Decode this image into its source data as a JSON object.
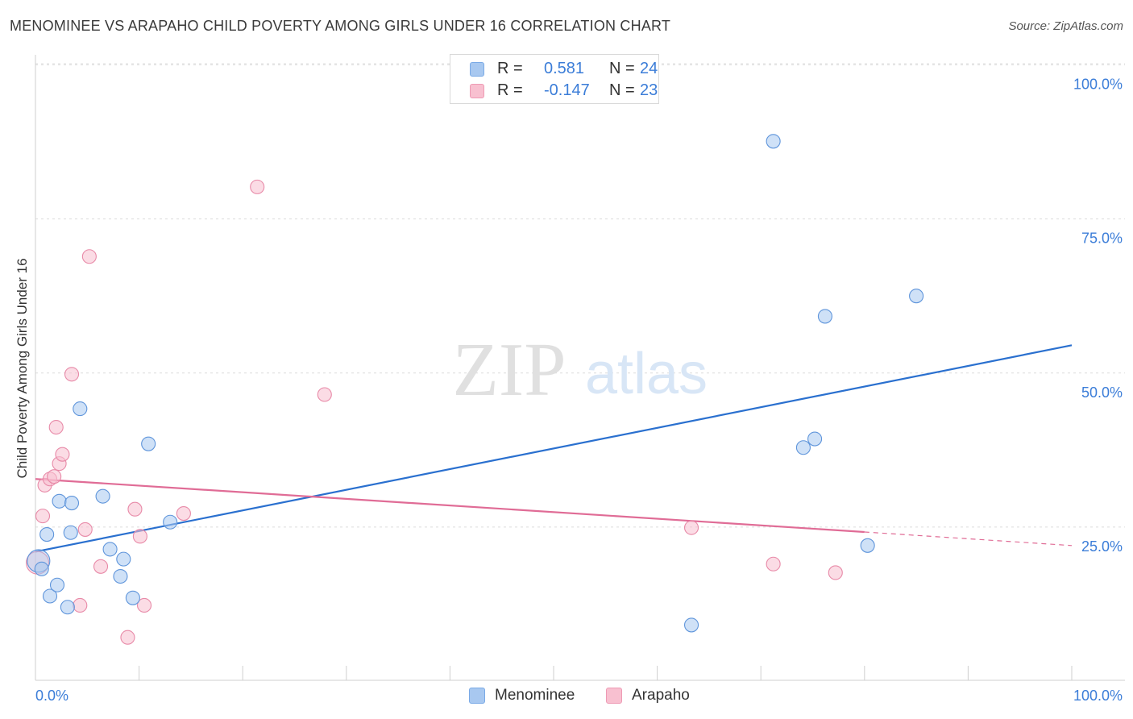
{
  "header": {
    "title": "MENOMINEE VS ARAPAHO CHILD POVERTY AMONG GIRLS UNDER 16 CORRELATION CHART",
    "source": "Source: ZipAtlas.com"
  },
  "watermark": {
    "zip": "ZIP",
    "atlas": "atlas"
  },
  "legend": {
    "rows": [
      {
        "r_label": "R =",
        "r_value": "0.581",
        "n_label": "N =",
        "n_value": "24",
        "color": "#a8c8f0",
        "border": "#7aaae6"
      },
      {
        "r_label": "R =",
        "r_value": "-0.147",
        "n_label": "N =",
        "n_value": "23",
        "color": "#f8c0d0",
        "border": "#ee9ab4"
      }
    ],
    "bottom": [
      {
        "label": "Menominee",
        "color": "#a8c8f0",
        "border": "#7aaae6"
      },
      {
        "label": "Arapaho",
        "color": "#f8c0d0",
        "border": "#ee9ab4"
      }
    ]
  },
  "colors": {
    "menominee_fill": "#a8c8f0",
    "menominee_stroke": "#5f95db",
    "menominee_line": "#2a70cf",
    "arapaho_fill": "#f8c0d0",
    "arapaho_stroke": "#e88aa8",
    "arapaho_line": "#e06c96",
    "axis_tick_text": "#3b7dd8",
    "grid": "#dcdcdc"
  },
  "chart_data": {
    "type": "scatter",
    "title": "MENOMINEE VS ARAPAHO CHILD POVERTY AMONG GIRLS UNDER 16 CORRELATION CHART",
    "xlabel": "",
    "ylabel": "Child Poverty Among Girls Under 16",
    "xlim": [
      0,
      100
    ],
    "ylim": [
      0,
      100
    ],
    "x_tick_labels": [
      "0.0%",
      "100.0%"
    ],
    "y_ticks": [
      {
        "value": 100,
        "label": "100.0%"
      },
      {
        "value": 75,
        "label": "75.0%"
      },
      {
        "value": 50,
        "label": "50.0%"
      },
      {
        "value": 25,
        "label": "25.0%"
      }
    ],
    "grid": true,
    "legend_position": "top-center",
    "series": [
      {
        "name": "Menominee",
        "r": 0.581,
        "n": 24,
        "points": [
          [
            0.3,
            19.5
          ],
          [
            0.6,
            18.2
          ],
          [
            1.1,
            23.8
          ],
          [
            1.4,
            13.8
          ],
          [
            2.1,
            15.6
          ],
          [
            2.3,
            29.2
          ],
          [
            3.1,
            12.0
          ],
          [
            3.4,
            24.1
          ],
          [
            3.5,
            28.9
          ],
          [
            4.3,
            44.2
          ],
          [
            6.5,
            30.0
          ],
          [
            7.2,
            21.4
          ],
          [
            8.2,
            17.0
          ],
          [
            8.5,
            19.8
          ],
          [
            9.4,
            13.5
          ],
          [
            10.9,
            38.5
          ],
          [
            13.0,
            25.8
          ],
          [
            63.3,
            9.1
          ],
          [
            71.2,
            87.6
          ],
          [
            74.1,
            37.9
          ],
          [
            75.2,
            39.3
          ],
          [
            76.2,
            59.2
          ],
          [
            80.3,
            22.0
          ],
          [
            85.0,
            62.5
          ]
        ],
        "trend": {
          "x": [
            0,
            100
          ],
          "y": [
            21.0,
            54.5
          ]
        }
      },
      {
        "name": "Arapaho",
        "r": -0.147,
        "n": 23,
        "points": [
          [
            0.2,
            19.2
          ],
          [
            0.7,
            26.8
          ],
          [
            0.9,
            31.8
          ],
          [
            1.4,
            32.8
          ],
          [
            1.8,
            33.2
          ],
          [
            2.0,
            41.2
          ],
          [
            2.3,
            35.3
          ],
          [
            2.6,
            36.8
          ],
          [
            3.5,
            49.8
          ],
          [
            4.3,
            12.3
          ],
          [
            4.8,
            24.6
          ],
          [
            5.2,
            68.9
          ],
          [
            6.3,
            18.6
          ],
          [
            8.9,
            7.1
          ],
          [
            9.6,
            27.9
          ],
          [
            10.1,
            23.5
          ],
          [
            10.5,
            12.3
          ],
          [
            14.3,
            27.2
          ],
          [
            21.4,
            80.2
          ],
          [
            27.9,
            46.5
          ],
          [
            63.3,
            24.9
          ],
          [
            71.2,
            19.0
          ],
          [
            77.2,
            17.6
          ]
        ],
        "trend": {
          "x": [
            0,
            80
          ],
          "y": [
            32.8,
            24.2
          ]
        },
        "trend_extension": {
          "x": [
            80,
            100
          ],
          "y": [
            24.2,
            22.0
          ]
        }
      }
    ]
  }
}
